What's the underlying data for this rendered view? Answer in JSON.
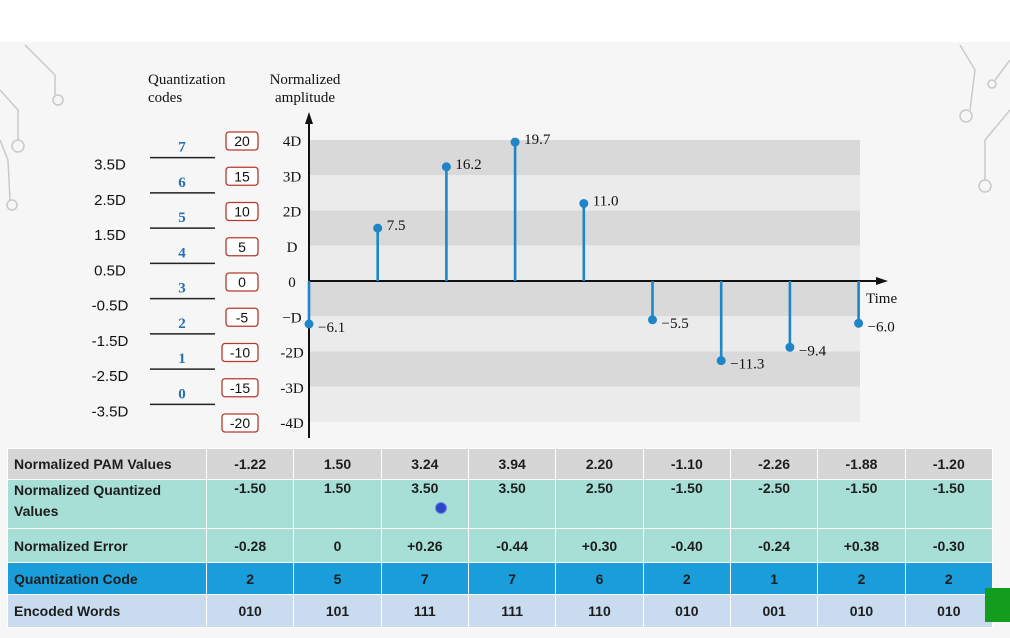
{
  "chart_data": {
    "type": "stem",
    "x_axis_label": "Time",
    "y_axis_label": "Normalized\namplitude",
    "code_header": "Quantization\ncodes",
    "samples": [
      -6.1,
      7.5,
      16.2,
      19.7,
      11.0,
      -5.5,
      -11.3,
      -9.4,
      -6.0
    ],
    "sample_labels": [
      "−6.1",
      "7.5",
      "16.2",
      "19.7",
      "11.0",
      "−5.5",
      "−11.3",
      "−9.4",
      "−6.0"
    ],
    "ylim": [
      -20,
      20
    ],
    "y_ticks": [
      {
        "value": 20,
        "d_label": "4D",
        "box": "20"
      },
      {
        "value": 15,
        "d_label": "3D",
        "box": "15"
      },
      {
        "value": 10,
        "d_label": "2D",
        "box": "10"
      },
      {
        "value": 5,
        "d_label": "D",
        "box": "5"
      },
      {
        "value": 0,
        "d_label": "0",
        "box": "0"
      },
      {
        "value": -5,
        "d_label": "−D",
        "box": "-5"
      },
      {
        "value": -10,
        "d_label": "-2D",
        "box": "-10"
      },
      {
        "value": -15,
        "d_label": "-3D",
        "box": "-15"
      },
      {
        "value": -20,
        "d_label": "-4D",
        "box": "-20"
      }
    ],
    "quantization_levels": [
      {
        "code": "7",
        "level": "3.5D",
        "value": 17.5
      },
      {
        "code": "6",
        "level": "2.5D",
        "value": 12.5
      },
      {
        "code": "5",
        "level": "1.5D",
        "value": 7.5
      },
      {
        "code": "4",
        "level": "0.5D",
        "value": 2.5
      },
      {
        "code": "3",
        "level": "-0.5D",
        "value": -2.5
      },
      {
        "code": "2",
        "level": "-1.5D",
        "value": -7.5
      },
      {
        "code": "1",
        "level": "-2.5D",
        "value": -12.5
      },
      {
        "code": "0",
        "level": "-3.5D",
        "value": -17.5
      }
    ]
  },
  "table": {
    "rows": [
      {
        "label": "Normalized PAM Values",
        "values": [
          "-1.22",
          "1.50",
          "3.24",
          "3.94",
          "2.20",
          "-1.10",
          "-2.26",
          "-1.88",
          "-1.20"
        ]
      },
      {
        "label": "Normalized Quantized Values",
        "values": [
          "-1.50",
          "1.50",
          "3.50",
          "3.50",
          "2.50",
          "-1.50",
          "-2.50",
          "-1.50",
          "-1.50"
        ]
      },
      {
        "label": "Normalized Error",
        "values": [
          "-0.28",
          "0",
          "+0.26",
          "-0.44",
          "+0.30",
          "-0.40",
          "-0.24",
          "+0.38",
          "-0.30"
        ]
      },
      {
        "label": "Quantization Code",
        "values": [
          "2",
          "5",
          "7",
          "7",
          "6",
          "2",
          "1",
          "2",
          "2"
        ]
      },
      {
        "label": "Encoded Words",
        "values": [
          "010",
          "101",
          "111",
          "111",
          "110",
          "010",
          "001",
          "010",
          "010"
        ]
      }
    ]
  },
  "colors": {
    "stem": "#1e85c8",
    "code_text": "#2a6fb0",
    "box_border": "#b53a2c",
    "band_dark": "#d9d9d9",
    "band_light": "#ebebeb",
    "row_gray": "#d6d6d6",
    "row_teal": "#a7dfd6",
    "row_blue": "#1a9ddb",
    "row_lightblue": "#c8dbef"
  }
}
